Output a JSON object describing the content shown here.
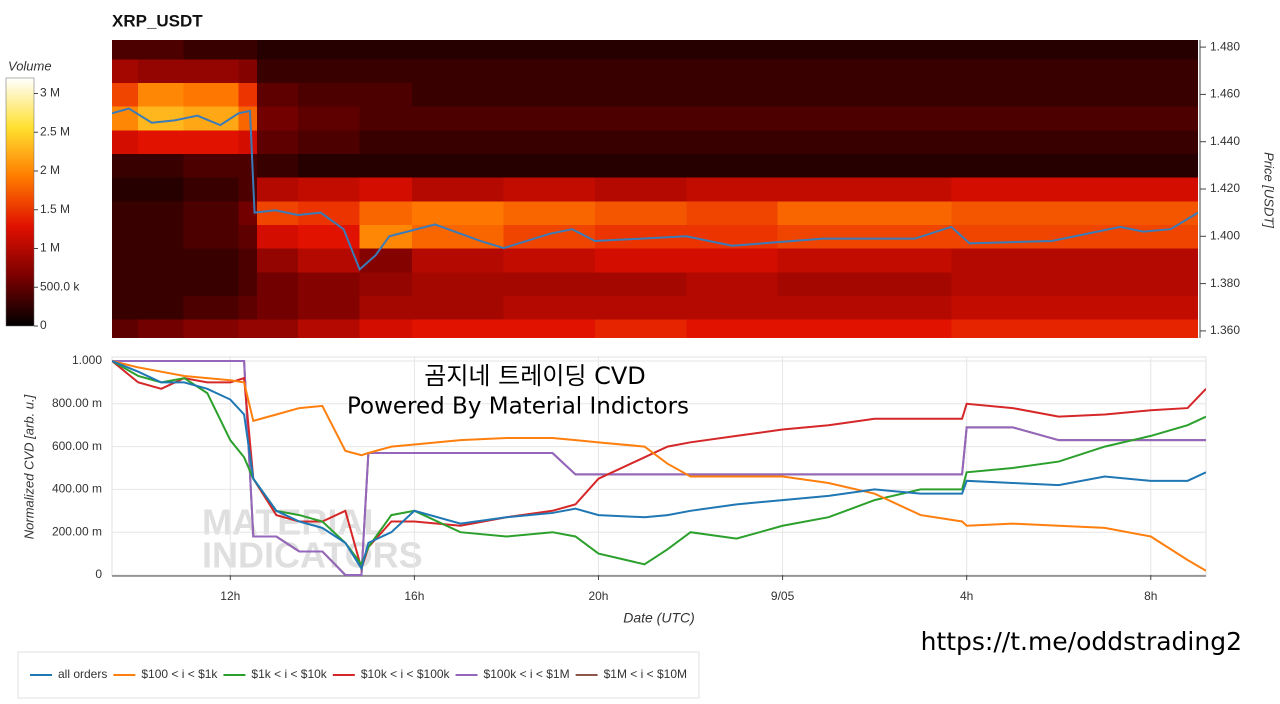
{
  "chart_data": [
    {
      "type": "heatmap",
      "title": "XRP_USDT",
      "ylabel": "Price [USDT]",
      "xlim": [
        9.43,
        33.2
      ],
      "ylim": [
        1.357,
        1.483
      ],
      "yticks": [
        {
          "value": 1.36,
          "label": "1.360"
        },
        {
          "value": 1.38,
          "label": "1.380"
        },
        {
          "value": 1.4,
          "label": "1.400"
        },
        {
          "value": 1.42,
          "label": "1.420"
        },
        {
          "value": 1.44,
          "label": "1.440"
        },
        {
          "value": 1.46,
          "label": "1.460"
        },
        {
          "value": 1.48,
          "label": "1.480"
        }
      ],
      "x_bins": [
        9.43,
        10,
        11,
        12.2,
        12.6,
        13.5,
        14.85,
        16,
        18,
        20,
        22,
        24,
        27.8,
        33.2
      ],
      "price_bins": [
        1.355,
        1.365,
        1.375,
        1.385,
        1.395,
        1.405,
        1.415,
        1.425,
        1.435,
        1.445,
        1.455,
        1.465,
        1.475,
        1.485
      ],
      "z": [
        [
          500000.0,
          600000.0,
          700000.0,
          800000.0,
          800000.0,
          1000000.0,
          1200000.0,
          1300000.0,
          1300000.0,
          1400000.0,
          1300000.0,
          1300000.0,
          1400000.0
        ],
        [
          300000.0,
          300000.0,
          400000.0,
          500000.0,
          600000.0,
          700000.0,
          900000.0,
          900000.0,
          1000000.0,
          1000000.0,
          1000000.0,
          1000000.0,
          1100000.0
        ],
        [
          300000.0,
          300000.0,
          300000.0,
          400000.0,
          600000.0,
          700000.0,
          800000.0,
          900000.0,
          900000.0,
          900000.0,
          1000000.0,
          900000.0,
          1000000.0
        ],
        [
          300000.0,
          300000.0,
          300000.0,
          400000.0,
          800000.0,
          1000000.0,
          700000.0,
          1000000.0,
          1100000.0,
          1200000.0,
          1200000.0,
          1100000.0,
          1000000.0
        ],
        [
          300000.0,
          300000.0,
          400000.0,
          500000.0,
          1200000.0,
          1300000.0,
          2000000.0,
          1800000.0,
          1600000.0,
          1500000.0,
          1500000.0,
          1600000.0,
          1600000.0
        ],
        [
          300000.0,
          300000.0,
          400000.0,
          600000.0,
          1600000.0,
          1500000.0,
          1800000.0,
          1900000.0,
          1800000.0,
          1700000.0,
          1600000.0,
          1800000.0,
          1700000.0
        ],
        [
          200000.0,
          200000.0,
          300000.0,
          400000.0,
          1000000.0,
          1100000.0,
          1200000.0,
          1000000.0,
          1100000.0,
          1000000.0,
          1100000.0,
          1100000.0,
          1200000.0
        ],
        [
          300000.0,
          300000.0,
          400000.0,
          400000.0,
          300000.0,
          200000.0,
          200000.0,
          200000.0,
          200000.0,
          200000.0,
          200000.0,
          200000.0,
          200000.0
        ],
        [
          1200000.0,
          1300000.0,
          1300000.0,
          1200000.0,
          500000.0,
          400000.0,
          300000.0,
          300000.0,
          300000.0,
          300000.0,
          300000.0,
          300000.0,
          300000.0
        ],
        [
          2000000.0,
          2300000.0,
          2200000.0,
          1800000.0,
          600000.0,
          500000.0,
          400000.0,
          400000.0,
          400000.0,
          400000.0,
          400000.0,
          400000.0,
          400000.0
        ],
        [
          1600000.0,
          2000000.0,
          1900000.0,
          1500000.0,
          500000.0,
          400000.0,
          400000.0,
          300000.0,
          300000.0,
          300000.0,
          300000.0,
          300000.0,
          300000.0
        ],
        [
          900000.0,
          800000.0,
          800000.0,
          700000.0,
          300000.0,
          300000.0,
          300000.0,
          300000.0,
          300000.0,
          300000.0,
          300000.0,
          300000.0,
          300000.0
        ],
        [
          400000.0,
          400000.0,
          300000.0,
          300000.0,
          200000.0,
          200000.0,
          200000.0,
          200000.0,
          200000.0,
          200000.0,
          200000.0,
          200000.0,
          200000.0
        ]
      ],
      "colorbar": {
        "title": "Volume",
        "lim": [
          0,
          3200000.0
        ],
        "colors": [
          "#000000",
          "#7a0000",
          "#e01000",
          "#ff7a00",
          "#ffe030",
          "#ffffff"
        ],
        "ticks": [
          0,
          {
            "value": 500000,
            "label": "500.0 k"
          },
          {
            "value": 1000000,
            "label": "1 M"
          },
          {
            "value": 1500000,
            "label": "1.5 M"
          },
          {
            "value": 2000000,
            "label": "2 M"
          },
          {
            "value": 2500000,
            "label": "2.5 M"
          },
          {
            "value": 3000000,
            "label": "3 M"
          }
        ]
      },
      "price": {
        "color": "#3b7bb8",
        "x": [
          9.43,
          9.8,
          10.3,
          10.8,
          11.3,
          11.8,
          12.2,
          12.45,
          12.55,
          13,
          13.5,
          14,
          14.5,
          14.85,
          15.2,
          15.5,
          16.5,
          17.5,
          18,
          19,
          19.5,
          20,
          22,
          23,
          25,
          27,
          27.8,
          28.2,
          30,
          31.5,
          32,
          32.6,
          33.2
        ],
        "values": [
          1.452,
          1.454,
          1.448,
          1.449,
          1.451,
          1.447,
          1.452,
          1.453,
          1.41,
          1.411,
          1.409,
          1.41,
          1.403,
          1.386,
          1.392,
          1.4,
          1.405,
          1.398,
          1.395,
          1.401,
          1.403,
          1.398,
          1.4,
          1.396,
          1.399,
          1.399,
          1.404,
          1.397,
          1.398,
          1.404,
          1.402,
          1.403,
          1.41
        ]
      }
    },
    {
      "type": "line",
      "xlabel": "Date (UTC)",
      "ylabel": "Normalized CVD [arb. u.]",
      "grid": true,
      "legend": "bottom-left",
      "xlim": [
        9.43,
        33.2
      ],
      "ylim": [
        0,
        1
      ],
      "xticks": [
        {
          "value": 12,
          "label": "12h"
        },
        {
          "value": 16,
          "label": "16h"
        },
        {
          "value": 20,
          "label": "20h"
        },
        {
          "value": 24,
          "label": "9/05"
        },
        {
          "value": 28,
          "label": "4h"
        },
        {
          "value": 32,
          "label": "8h"
        }
      ],
      "yticks": [
        0,
        {
          "value": 0.2,
          "label": "200.00 m"
        },
        {
          "value": 0.4,
          "label": "400.00 m"
        },
        {
          "value": 0.6,
          "label": "600.00 m"
        },
        {
          "value": 0.8,
          "label": "800.00 m"
        },
        {
          "value": 1,
          "label": "1.000"
        }
      ],
      "x": [
        9.43,
        10,
        10.5,
        11,
        11.5,
        12,
        12.3,
        12.5,
        13,
        13.5,
        14,
        14.5,
        14.85,
        15,
        15.5,
        16,
        17,
        18,
        19,
        19.5,
        20,
        21,
        21.5,
        22,
        23,
        24,
        25,
        26,
        27,
        27.9,
        28,
        29,
        30,
        31,
        32,
        32.8,
        33.2
      ],
      "series": [
        {
          "name": "all orders",
          "color": "#1f77b4",
          "values": [
            1.0,
            0.95,
            0.9,
            0.9,
            0.87,
            0.82,
            0.75,
            0.45,
            0.3,
            0.25,
            0.22,
            0.15,
            0.03,
            0.15,
            0.2,
            0.3,
            0.24,
            0.27,
            0.29,
            0.31,
            0.28,
            0.27,
            0.28,
            0.3,
            0.33,
            0.35,
            0.37,
            0.4,
            0.38,
            0.38,
            0.44,
            0.43,
            0.42,
            0.46,
            0.44,
            0.44,
            0.48
          ]
        },
        {
          "name": "$100 < i < $1k",
          "color": "#ff7f0e",
          "values": [
            1.0,
            0.97,
            0.95,
            0.93,
            0.92,
            0.91,
            0.9,
            0.72,
            0.75,
            0.78,
            0.79,
            0.58,
            0.56,
            0.57,
            0.6,
            0.61,
            0.63,
            0.64,
            0.64,
            0.63,
            0.62,
            0.6,
            0.52,
            0.46,
            0.46,
            0.46,
            0.43,
            0.38,
            0.28,
            0.25,
            0.23,
            0.24,
            0.23,
            0.22,
            0.18,
            0.07,
            0.02
          ]
        },
        {
          "name": "$1k < i < $10k",
          "color": "#2ca02c",
          "values": [
            1.0,
            0.93,
            0.9,
            0.92,
            0.85,
            0.63,
            0.55,
            0.45,
            0.3,
            0.28,
            0.25,
            0.15,
            0.05,
            0.13,
            0.28,
            0.3,
            0.2,
            0.18,
            0.2,
            0.18,
            0.1,
            0.05,
            0.12,
            0.2,
            0.17,
            0.23,
            0.27,
            0.35,
            0.4,
            0.4,
            0.48,
            0.5,
            0.53,
            0.6,
            0.65,
            0.7,
            0.74
          ]
        },
        {
          "name": "$10k < i < $100k",
          "color": "#d62728",
          "values": [
            1.0,
            0.9,
            0.87,
            0.92,
            0.9,
            0.9,
            0.92,
            0.45,
            0.28,
            0.25,
            0.25,
            0.3,
            0.03,
            0.13,
            0.25,
            0.25,
            0.23,
            0.27,
            0.3,
            0.33,
            0.45,
            0.55,
            0.6,
            0.62,
            0.65,
            0.68,
            0.7,
            0.73,
            0.73,
            0.73,
            0.8,
            0.78,
            0.74,
            0.75,
            0.77,
            0.78,
            0.87
          ]
        },
        {
          "name": "$100k < i < $1M",
          "color": "#9467bd",
          "values": [
            1,
            1,
            1,
            1,
            1,
            1,
            1,
            0.18,
            0.18,
            0.11,
            0.11,
            0,
            0,
            0.57,
            0.57,
            0.57,
            0.57,
            0.57,
            0.57,
            0.47,
            0.47,
            0.47,
            0.47,
            0.47,
            0.47,
            0.47,
            0.47,
            0.47,
            0.47,
            0.47,
            0.69,
            0.69,
            0.63,
            0.63,
            0.63,
            0.63,
            0.63
          ]
        },
        {
          "name": "$1M < i < $10M",
          "color": "#8c564b",
          "values": [
            1,
            1,
            1,
            1,
            1,
            1,
            1,
            0.18,
            0.18,
            0.11,
            0.11,
            0,
            0,
            0.57,
            0.57,
            0.57,
            0.57,
            0.57,
            0.57,
            0.47,
            0.47,
            0.47,
            0.47,
            0.47,
            0.47,
            0.47,
            0.47,
            0.47,
            0.47,
            0.47,
            0.69,
            0.69,
            0.63,
            0.63,
            0.63,
            0.63,
            0.63
          ]
        }
      ],
      "annotations": [
        "곰지네 트레이딩 CVD",
        "Powered By Material Indictors",
        "https://t.me/oddstrading2"
      ],
      "watermark": [
        "MATERIAL",
        "INDICATORS"
      ]
    }
  ]
}
